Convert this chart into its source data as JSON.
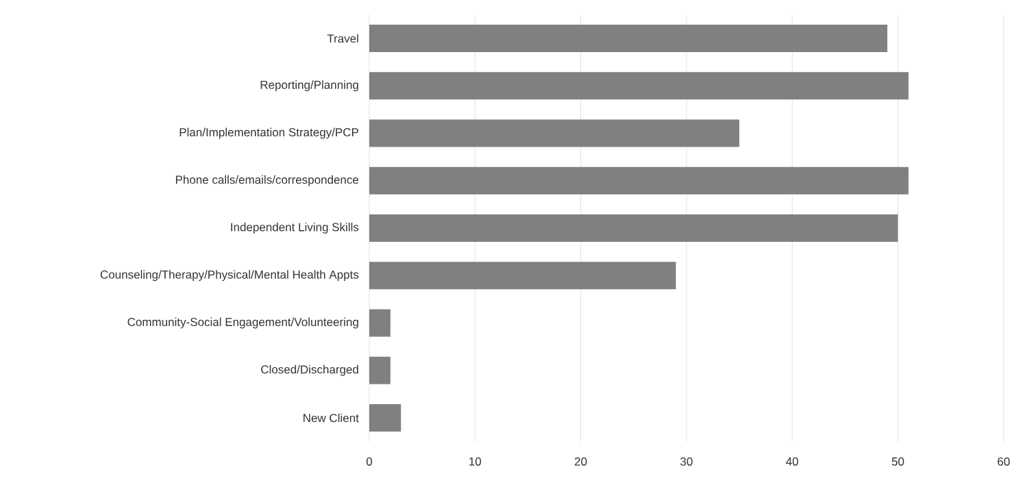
{
  "chart_data": {
    "type": "bar",
    "orientation": "horizontal",
    "categories": [
      "Travel",
      "Reporting/Planning",
      "Plan/Implementation Strategy/PCP",
      "Phone calls/emails/correspondence",
      "Independent Living Skills",
      "Counseling/Therapy/Physical/Mental Health Appts",
      "Community-Social Engagement/Volunteering",
      "Closed/Discharged",
      "New Client"
    ],
    "values": [
      49,
      51,
      35,
      51,
      50,
      29,
      2,
      2,
      3
    ],
    "color": "#808080",
    "xlim": [
      0,
      60
    ],
    "xticks": [
      0,
      10,
      20,
      30,
      40,
      50,
      60
    ],
    "grid": "x"
  }
}
